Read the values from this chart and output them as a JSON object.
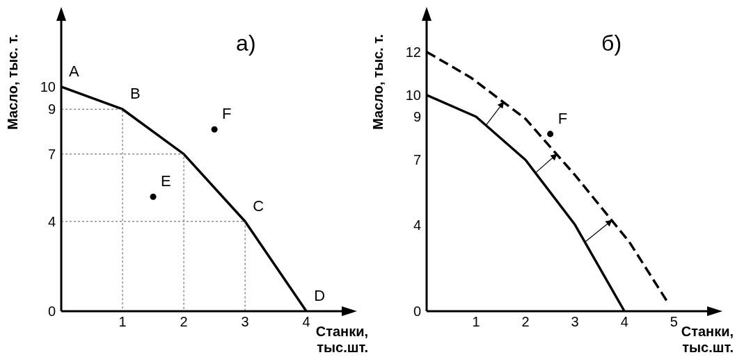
{
  "chart_data": [
    {
      "type": "line",
      "title": "а)",
      "xlabel": "Станки,\nтыс.шт.",
      "ylabel": "Масло, тыс. т.",
      "xlim": [
        0,
        4.6
      ],
      "ylim": [
        0,
        13
      ],
      "xticks": [
        1,
        2,
        3,
        4
      ],
      "yticks": [
        0,
        4,
        7,
        9,
        10
      ],
      "grid": false,
      "marker": "none",
      "series": [
        {
          "color": "#000000",
          "line_style": "solid",
          "x": [
            0,
            1,
            2,
            3,
            4
          ],
          "values": [
            10,
            9,
            7,
            4,
            0
          ]
        },
        {
          "color": "#555555",
          "line_style": "dotted",
          "x": [
            0,
            1,
            1
          ],
          "values": [
            9,
            9,
            0
          ]
        },
        {
          "color": "#555555",
          "line_style": "dotted",
          "x": [
            0,
            2,
            2
          ],
          "values": [
            7,
            7,
            0
          ]
        },
        {
          "color": "#555555",
          "line_style": "dotted",
          "x": [
            0,
            3,
            3
          ],
          "values": [
            4,
            4,
            0
          ]
        },
        {
          "type": "scatter",
          "color": "#000000",
          "marker": "circle",
          "x": [
            1.5,
            2.5
          ],
          "values": [
            5.1,
            8.1
          ]
        }
      ],
      "annotations": [
        {
          "text": "A",
          "x": 0,
          "y": 10
        },
        {
          "text": "B",
          "x": 1,
          "y": 9
        },
        {
          "text": "C",
          "x": 3,
          "y": 4
        },
        {
          "text": "D",
          "x": 4,
          "y": 0
        },
        {
          "text": "E",
          "x": 1.5,
          "y": 5.1
        },
        {
          "text": "F",
          "x": 2.5,
          "y": 8.1
        }
      ]
    },
    {
      "type": "line",
      "title": "б)",
      "xlabel": "Станки,\nтыс.шт.",
      "ylabel": "Масло, тыс. т.",
      "xlim": [
        0,
        5.7
      ],
      "ylim": [
        0,
        13.5
      ],
      "xticks": [
        1,
        2,
        3,
        4,
        5
      ],
      "yticks": [
        0,
        4,
        7,
        9,
        10,
        12
      ],
      "grid": false,
      "marker": "none",
      "series": [
        {
          "color": "#000000",
          "line_style": "solid",
          "x": [
            0,
            1,
            2,
            3,
            4
          ],
          "values": [
            10,
            9,
            7,
            4,
            0
          ]
        },
        {
          "color": "#000000",
          "line_style": "dashed",
          "x": [
            0,
            0.9,
            2,
            3,
            4.1,
            4.85
          ],
          "values": [
            12,
            10.8,
            8.9,
            6.3,
            3.2,
            0.5
          ]
        },
        {
          "type": "scatter",
          "color": "#000000",
          "marker": "circle",
          "x": [
            2.5
          ],
          "values": [
            8.2
          ]
        }
      ],
      "annotations": [
        {
          "text": "F",
          "x": 2.5,
          "y": 8.2
        }
      ]
    }
  ]
}
